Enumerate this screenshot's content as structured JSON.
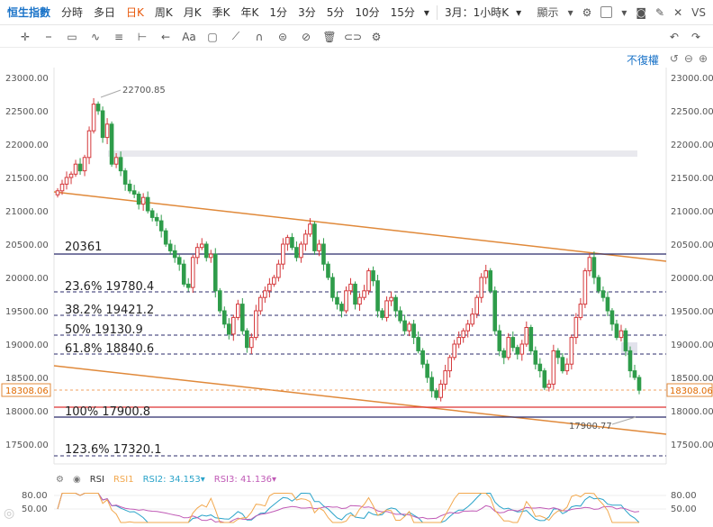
{
  "toolbar": {
    "symbol": "恒生指數",
    "timeframes": [
      "分時",
      "多日",
      "日K",
      "周K",
      "月K",
      "季K",
      "年K",
      "1分",
      "3分",
      "5分",
      "10分",
      "15分"
    ],
    "active_timeframe": "日K",
    "range": "3月：1小時K",
    "display": "顯示"
  },
  "adjust_label": "不復權",
  "price_axis": {
    "ticks": [
      "23000.00",
      "22500.00",
      "22000.00",
      "21500.00",
      "21000.00",
      "20500.00",
      "20000.00",
      "19500.00",
      "19000.00",
      "18500.00",
      "18000.00",
      "17500.00"
    ],
    "current_price_label": "18308.06"
  },
  "annotations": {
    "high_label": "22700.85",
    "low_label": "17900.77",
    "resistance_label": "20361",
    "fib": [
      {
        "label": "23.6% 19780.4"
      },
      {
        "label": "38.2% 19421.2"
      },
      {
        "label": "50% 19130.9"
      },
      {
        "label": "61.8% 18840.6"
      },
      {
        "label": "100% 17900.8"
      },
      {
        "label": "123.6% 17320.1"
      }
    ]
  },
  "rsi": {
    "title": "RSI",
    "rsi1_label": "RSI1",
    "rsi2_label": "RSI2:",
    "rsi2_value": "34.153",
    "rsi3_label": "RSI3:",
    "rsi3_value": "41.136",
    "ticks": [
      "80.00",
      "50.00"
    ]
  },
  "chart_data": {
    "type": "candlestick",
    "ylim": [
      17300,
      23100
    ],
    "closes": [
      21300,
      21400,
      21500,
      21550,
      21700,
      21600,
      21800,
      22200,
      22600,
      22500,
      22100,
      22300,
      21700,
      21800,
      21600,
      21400,
      21300,
      21250,
      21100,
      21200,
      21000,
      20900,
      20850,
      20700,
      20500,
      20400,
      20300,
      20200,
      19900,
      19850,
      20300,
      20450,
      20500,
      20300,
      20350,
      19800,
      19500,
      19300,
      19150,
      19400,
      19600,
      19200,
      18950,
      19100,
      19500,
      19700,
      19800,
      19900,
      20000,
      20200,
      20500,
      20600,
      20450,
      20300,
      20500,
      20650,
      20800,
      20400,
      20500,
      20200,
      20000,
      19700,
      19600,
      19500,
      19800,
      19900,
      19600,
      19700,
      19800,
      20100,
      19950,
      19500,
      19400,
      19650,
      19700,
      19500,
      19350,
      19200,
      19300,
      19100,
      18900,
      18700,
      18500,
      18300,
      18200,
      18400,
      18600,
      18800,
      19000,
      19100,
      19200,
      19300,
      19450,
      19700,
      20000,
      20100,
      19800,
      19200,
      18900,
      18800,
      19100,
      18950,
      18850,
      19000,
      19250,
      18900,
      18700,
      18600,
      18350,
      18400,
      18900,
      18800,
      18600,
      18700,
      19100,
      19400,
      19600,
      20100,
      20300,
      20000,
      19800,
      19700,
      19500,
      19300,
      19100,
      19200,
      18900,
      18600,
      18500,
      18308
    ]
  }
}
